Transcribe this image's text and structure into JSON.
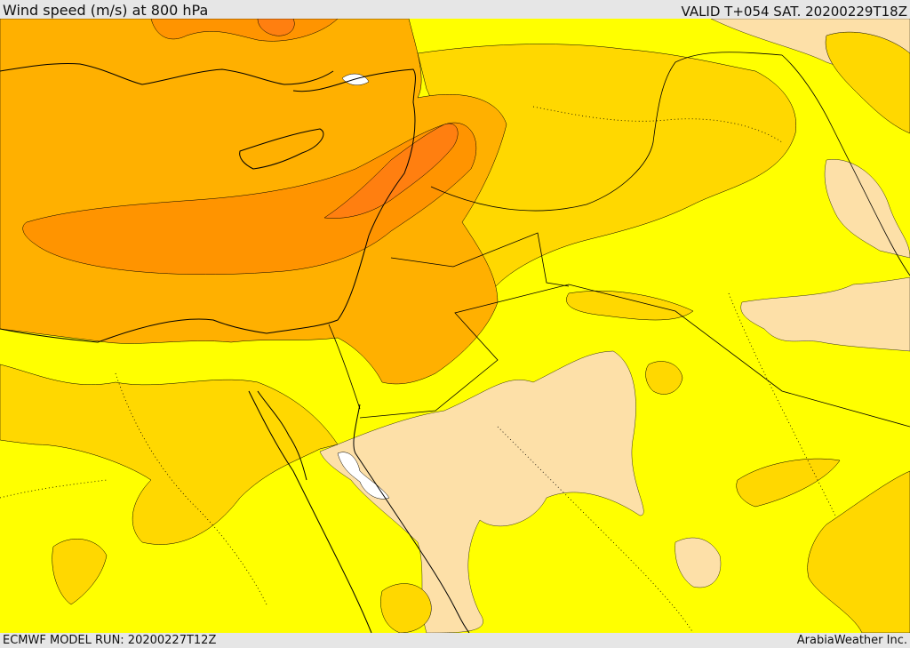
{
  "header": {
    "title": "Wind speed (m/s) at 800 hPa",
    "valid_time": "VALID T+054 SAT. 20200229T18Z"
  },
  "footer": {
    "model_run": "ECMWF MODEL RUN: 20200227T12Z",
    "credit": "ArabiaWeather Inc."
  },
  "map": {
    "field": "wind-speed-800hPa",
    "colors": {
      "band_low": "#fde0a8",
      "band_base": "#ffff00",
      "band_mid": "#ffd800",
      "band_high": "#ffb000",
      "band_higher": "#ff9400",
      "band_max": "#ff7f10",
      "sea_gap": "#ffffff",
      "border_line": "#000000"
    }
  }
}
